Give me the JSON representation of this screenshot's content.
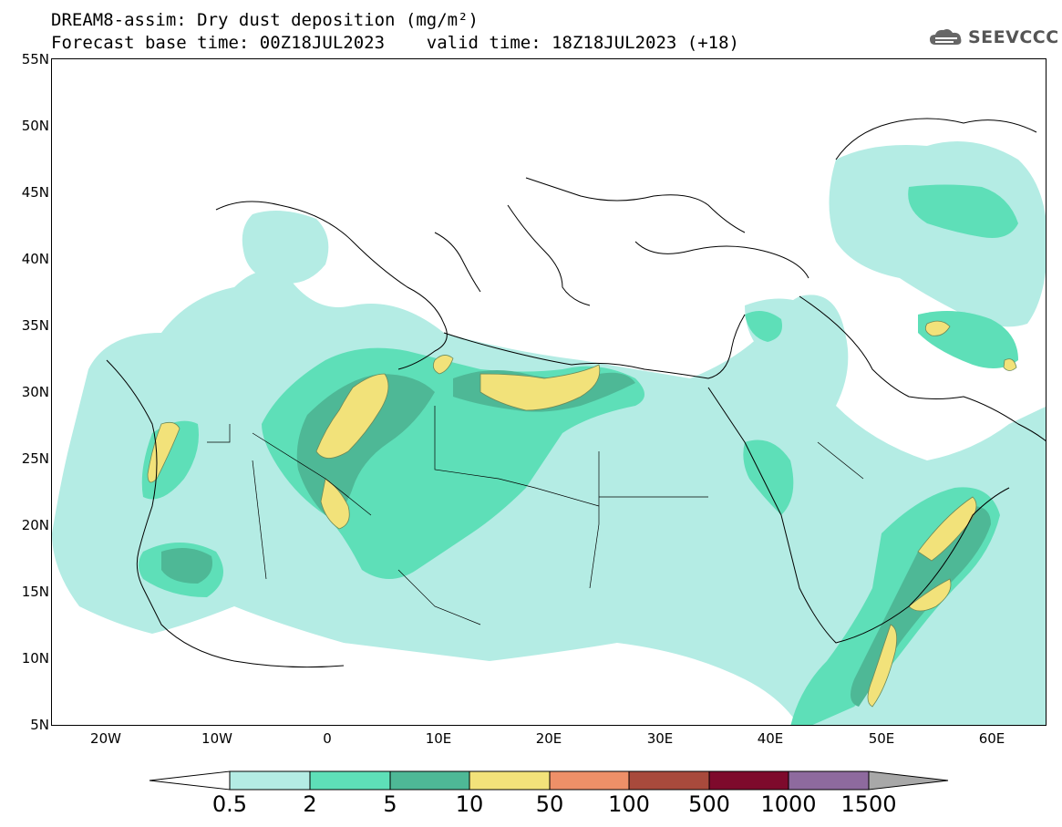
{
  "header": {
    "title_line1": "DREAM8-assim: Dry dust deposition (mg/m²)",
    "title_line2": "Forecast base time: 00Z18JUL2023    valid time: 18Z18JUL2023 (+18)",
    "logo_text": "SEEVCCC"
  },
  "map": {
    "lat_labels": [
      "55N",
      "50N",
      "45N",
      "40N",
      "35N",
      "30N",
      "25N",
      "20N",
      "15N",
      "10N",
      "5N"
    ],
    "lon_labels": [
      "20W",
      "10W",
      "0",
      "10E",
      "20E",
      "30E",
      "40E",
      "50E",
      "60E"
    ],
    "extent": {
      "lon_min": -25,
      "lon_max": 65,
      "lat_min": 5,
      "lat_max": 55
    }
  },
  "legend": {
    "thresholds": [
      "0.5",
      "2",
      "5",
      "10",
      "50",
      "100",
      "500",
      "1000",
      "1500"
    ],
    "colors": [
      "#ffffff",
      "#b4ece4",
      "#5edfb8",
      "#4eb896",
      "#f2e27a",
      "#ee9068",
      "#a84a3c",
      "#7e0a2c",
      "#8e6a9e",
      "#a8a8a8"
    ]
  },
  "colors": {
    "level_0_5": "#b4ece4",
    "level_2": "#5edfb8",
    "level_5": "#4eb896",
    "level_10": "#f2e27a"
  }
}
